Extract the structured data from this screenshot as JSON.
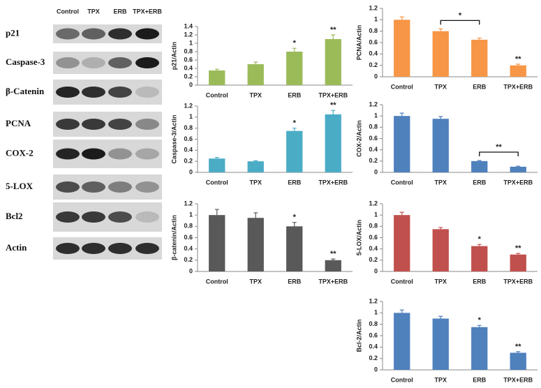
{
  "blot": {
    "lanes": [
      "Control",
      "TPX",
      "ERB",
      "TPX+ERB"
    ],
    "rows": [
      "p21",
      "Caspase-3",
      "β-Catenin",
      "PCNA",
      "COX-2",
      "5-LOX",
      "Bcl2",
      "Actin"
    ]
  },
  "chart_data": [
    {
      "type": "bar",
      "y_label": "p21/Actin",
      "categories": [
        "Control",
        "TPX",
        "ERB",
        "TPX+ERB"
      ],
      "values": [
        0.35,
        0.5,
        0.8,
        1.1
      ],
      "errors": [
        0.03,
        0.05,
        0.08,
        0.1
      ],
      "color": "#9bbb59",
      "ylim": [
        0,
        1.4
      ],
      "yticks": [
        0,
        0.2,
        0.4,
        0.6,
        0.8,
        1,
        1.2,
        1.4
      ],
      "significance": [
        null,
        null,
        "*",
        "**"
      ]
    },
    {
      "type": "bar",
      "y_label": "PCNA/Actin",
      "categories": [
        "Control",
        "TPX",
        "ERB",
        "TPX+ERB"
      ],
      "values": [
        1,
        0.8,
        0.65,
        0.2
      ],
      "errors": [
        0.05,
        0.04,
        0.03,
        0.02
      ],
      "color": "#f79646",
      "ylim": [
        0,
        1.2
      ],
      "yticks": [
        0,
        0.2,
        0.4,
        0.6,
        0.8,
        1,
        1.2
      ],
      "significance": [
        null,
        null,
        null,
        "**"
      ],
      "brackets": [
        {
          "text": "*",
          "categories": [
            "TPX",
            "ERB"
          ]
        }
      ]
    },
    {
      "type": "bar",
      "y_label": "Caspase-3/Actin",
      "categories": [
        "Control",
        "TPX",
        "ERB",
        "TPX+ERB"
      ],
      "values": [
        0.25,
        0.2,
        0.75,
        1.05
      ],
      "errors": [
        0.02,
        0.01,
        0.05,
        0.07
      ],
      "color": "#4bacc6",
      "ylim": [
        0,
        1.2
      ],
      "yticks": [
        0,
        0.2,
        0.4,
        0.6,
        0.8,
        1,
        1.2
      ],
      "significance": [
        null,
        null,
        "*",
        "**"
      ]
    },
    {
      "type": "bar",
      "y_label": "COX-2/Actin",
      "categories": [
        "Control",
        "TPX",
        "ERB",
        "TPX+ERB"
      ],
      "values": [
        1,
        0.95,
        0.2,
        0.1
      ],
      "errors": [
        0.05,
        0.04,
        0.01,
        0.01
      ],
      "color": "#4f81bd",
      "ylim": [
        0,
        1.2
      ],
      "yticks": [
        0,
        0.2,
        0.4,
        0.6,
        0.8,
        1,
        1.2
      ],
      "brackets": [
        {
          "text": "**",
          "categories": [
            "ERB",
            "TPX+ERB"
          ]
        }
      ]
    },
    {
      "type": "bar",
      "y_label": "β-catenin/Actin",
      "categories": [
        "Control",
        "TPX",
        "ERB",
        "TPX+ERB"
      ],
      "values": [
        1,
        0.95,
        0.8,
        0.2
      ],
      "errors": [
        0.1,
        0.09,
        0.07,
        0.02
      ],
      "color": "#595959",
      "ylim": [
        0,
        1.2
      ],
      "yticks": [
        0,
        0.2,
        0.4,
        0.6,
        0.8,
        1,
        1.2
      ],
      "significance": [
        null,
        null,
        "*",
        "**"
      ]
    },
    {
      "type": "bar",
      "y_label": "5-LOX/Actin",
      "categories": [
        "Control",
        "TPX",
        "ERB",
        "TPX+ERB"
      ],
      "values": [
        1,
        0.75,
        0.45,
        0.3
      ],
      "errors": [
        0.05,
        0.03,
        0.03,
        0.02
      ],
      "color": "#c0504d",
      "ylim": [
        0,
        1.2
      ],
      "yticks": [
        0,
        0.2,
        0.4,
        0.6,
        0.8,
        1,
        1.2
      ],
      "significance": [
        null,
        null,
        "*",
        "**"
      ]
    },
    {
      "type": "bar",
      "y_label": "Bcl-2/Actin",
      "categories": [
        "Control",
        "TPX",
        "ERB",
        "TPX+ERB"
      ],
      "values": [
        1,
        0.9,
        0.75,
        0.3
      ],
      "errors": [
        0.05,
        0.04,
        0.03,
        0.02
      ],
      "color": "#4f81bd",
      "ylim": [
        0,
        1.2
      ],
      "yticks": [
        0,
        0.2,
        0.4,
        0.6,
        0.8,
        1,
        1.2
      ],
      "significance": [
        null,
        null,
        "*",
        "**"
      ]
    }
  ]
}
